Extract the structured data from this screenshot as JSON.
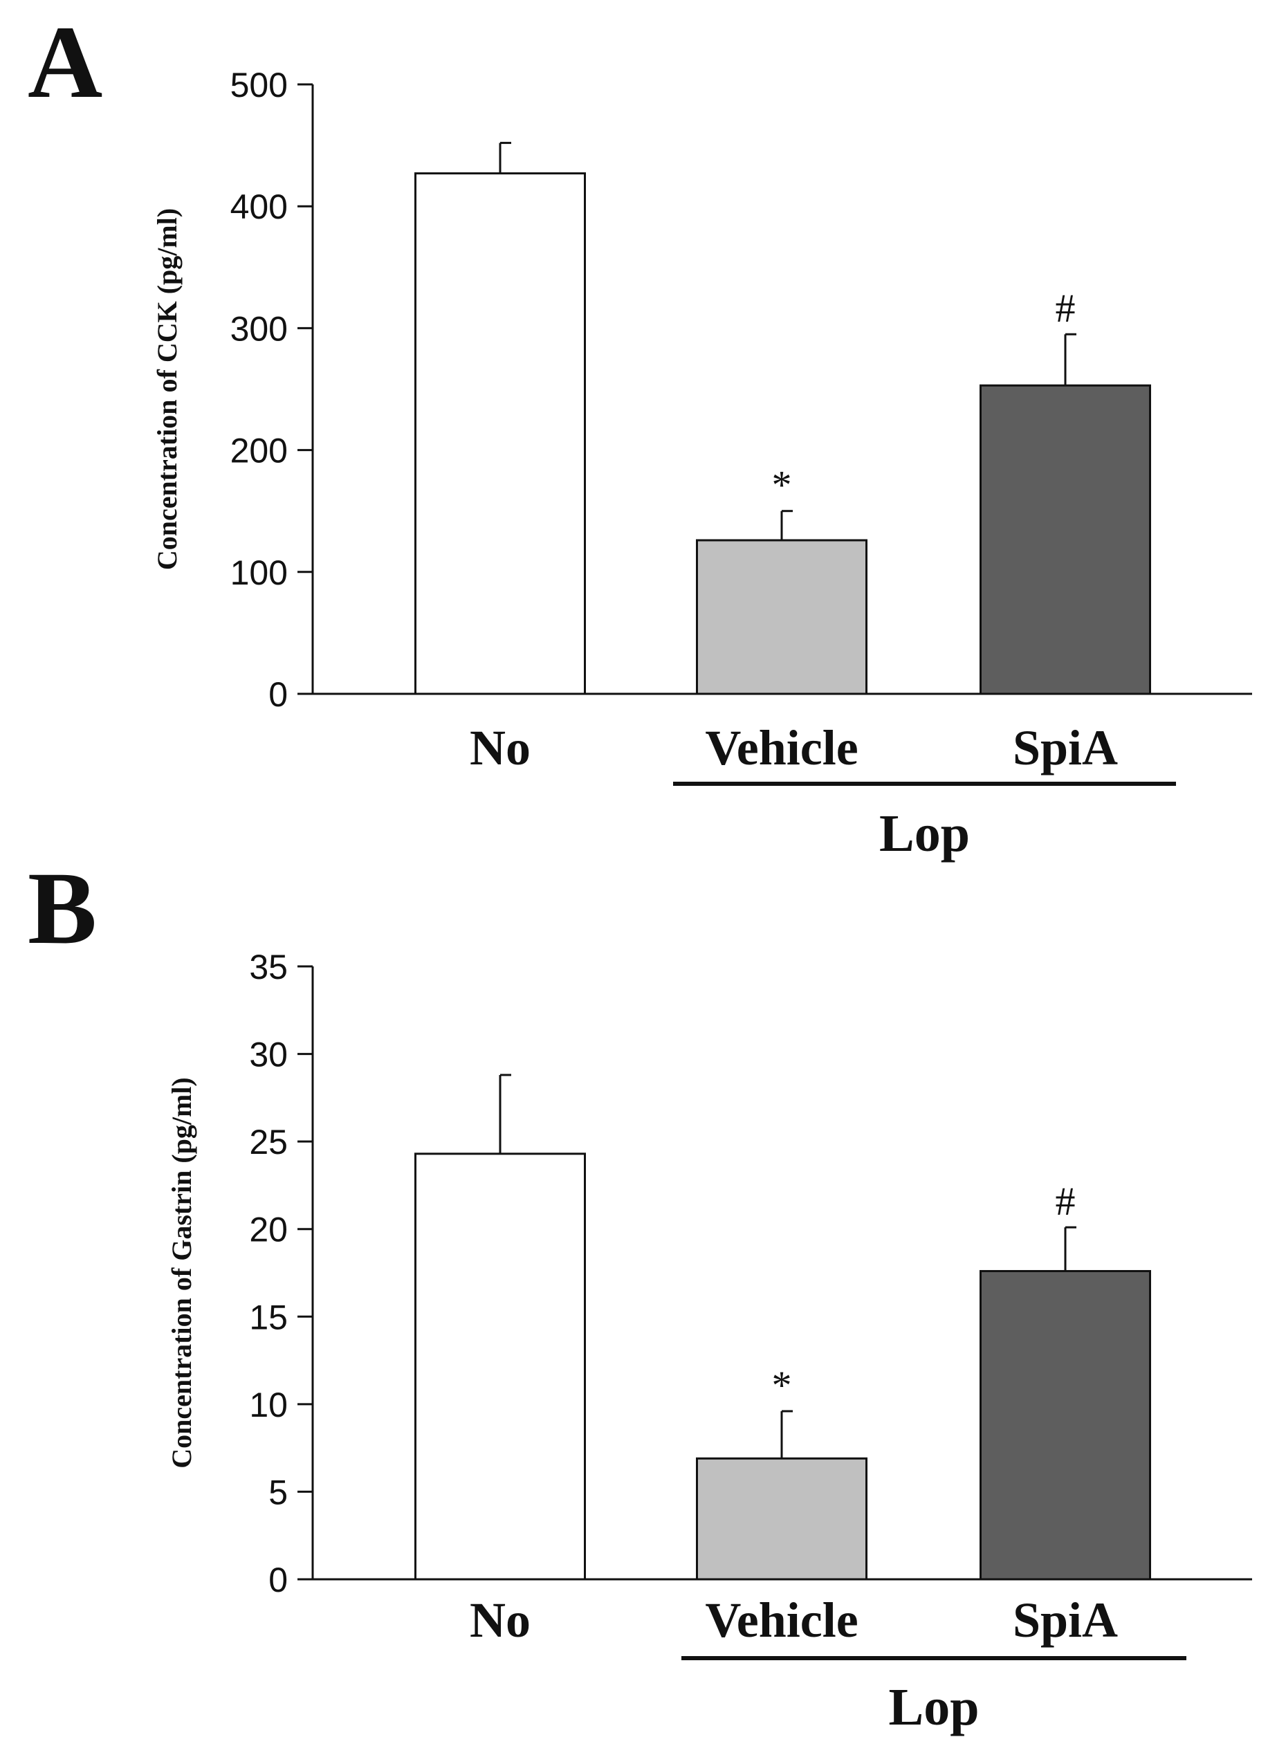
{
  "chart_data": [
    {
      "panel": "A",
      "type": "bar",
      "title": "",
      "xlabel": "",
      "ylabel": "Concentration of CCK  (pg/ml)",
      "ylim": [
        0,
        500
      ],
      "yticks": [
        0,
        100,
        200,
        300,
        400,
        500
      ],
      "categories": [
        "No",
        "Vehicle",
        "SpiA"
      ],
      "values": [
        427,
        126,
        253
      ],
      "errors": [
        25,
        24,
        42
      ],
      "bar_colors": [
        "#ffffff",
        "#c0c0c0",
        "#5e5e5e"
      ],
      "annotations": [
        "",
        "*",
        "#"
      ],
      "group_label": "Lop",
      "grid": false
    },
    {
      "panel": "B",
      "type": "bar",
      "title": "",
      "xlabel": "",
      "ylabel": "Concentration of Gastrin  (pg/ml)",
      "ylim": [
        0,
        35
      ],
      "yticks": [
        0,
        5,
        10,
        15,
        20,
        25,
        30,
        35
      ],
      "categories": [
        "No",
        "Vehicle",
        "SpiA"
      ],
      "values": [
        24.3,
        6.9,
        17.6
      ],
      "errors": [
        4.5,
        2.7,
        2.5
      ],
      "bar_colors": [
        "#ffffff",
        "#c0c0c0",
        "#5e5e5e"
      ],
      "annotations": [
        "",
        "*",
        "#"
      ],
      "group_label": "Lop",
      "grid": false
    }
  ]
}
